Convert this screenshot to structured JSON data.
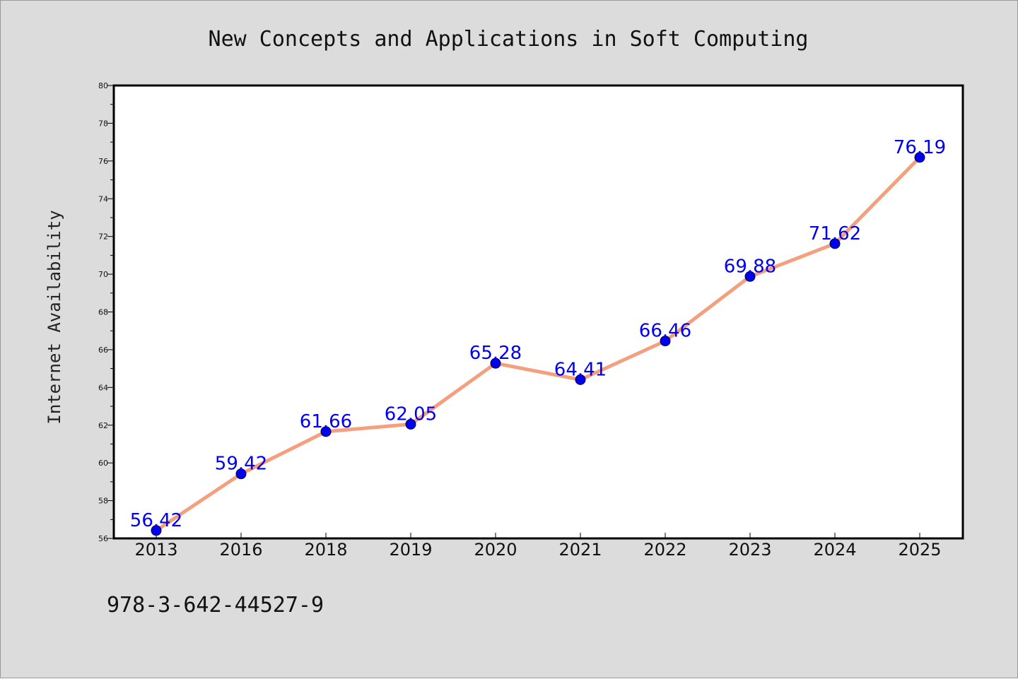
{
  "chart_data": {
    "type": "line",
    "title": "New Concepts and Applications in Soft Computing",
    "xlabel": "",
    "ylabel": "Internet Availability",
    "categories": [
      "2013",
      "2016",
      "2018",
      "2019",
      "2020",
      "2021",
      "2022",
      "2023",
      "2024",
      "2025"
    ],
    "series": [
      {
        "values": [
          56.42,
          59.42,
          61.66,
          62.05,
          65.28,
          64.41,
          66.46,
          69.88,
          71.62,
          76.19
        ],
        "data_labels": [
          "56.42",
          "59.42",
          "61.66",
          "62.05",
          "65.28",
          "64.41",
          "66.46",
          "69.88",
          "71.62",
          "76.19"
        ],
        "line_color": "#f4a07e",
        "marker_color": "#0000ee",
        "label_color": "#0000ee"
      }
    ],
    "ylim": [
      56,
      80
    ],
    "yticks": [
      "56",
      "58",
      "60",
      "62",
      "64",
      "66",
      "68",
      "70",
      "72",
      "74",
      "76",
      "78",
      "80"
    ],
    "grid": false,
    "legend": "none"
  },
  "footer": {
    "isbn": "978-3-642-44527-9"
  },
  "colors": {
    "background": "#dcdcdc",
    "plot_background": "#ffffff",
    "axis": "#000000"
  }
}
